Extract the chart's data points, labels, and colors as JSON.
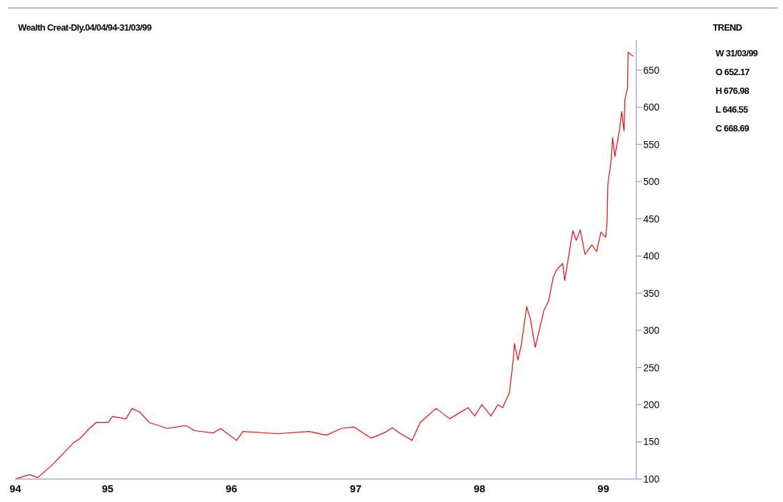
{
  "chart_data": {
    "type": "line",
    "title": "Wealth Creat-Dly.04/04/94-31/03/99",
    "annotations": [
      "TREND",
      "W 31/03/99",
      "O 652.17",
      "H 676.98",
      "L 646.55",
      "C 668.69"
    ],
    "x": [
      "1994-04-04",
      "1994-05-16",
      "1994-06-09",
      "1994-07-24",
      "1994-09-23",
      "1994-10-13",
      "1994-11-08",
      "1994-11-28",
      "1995-01-03",
      "1995-01-15",
      "1995-02-24",
      "1995-03-14",
      "1995-04-06",
      "1995-05-04",
      "1995-06-26",
      "1995-08-19",
      "1995-09-15",
      "1995-11-08",
      "1995-11-30",
      "1996-01-16",
      "1996-02-04",
      "1996-05-16",
      "1996-08-17",
      "1996-10-07",
      "1996-11-20",
      "1996-12-27",
      "1997-02-16",
      "1997-03-30",
      "1997-04-19",
      "1997-05-10",
      "1997-06-16",
      "1997-07-10",
      "1997-08-26",
      "1997-10-05",
      "1997-11-28",
      "1997-12-18",
      "1998-01-08",
      "1998-02-04",
      "1998-02-24",
      "1998-03-10",
      "1998-03-30",
      "1998-04-10",
      "1998-04-14",
      "1998-04-24",
      "1998-05-04",
      "1998-05-20",
      "1998-05-31",
      "1998-06-14",
      "1998-06-24",
      "1998-07-10",
      "1998-07-24",
      "1998-08-06",
      "1998-08-16",
      "1998-09-03",
      "1998-09-09",
      "1998-10-03",
      "1998-10-13",
      "1998-10-25",
      "1998-11-08",
      "1998-11-28",
      "1998-12-12",
      "1998-12-25",
      "1999-01-08",
      "1999-01-12",
      "1999-01-14",
      "1999-01-24",
      "1999-01-28",
      "1999-02-04",
      "1999-02-18",
      "1999-02-24",
      "1999-03-03",
      "1999-03-05",
      "1999-03-13",
      "1999-03-15",
      "1999-03-25",
      "1999-03-31"
    ],
    "series": [
      {
        "color": "#ff0000",
        "values": [
          100,
          106,
          102,
          120,
          149,
          155,
          168,
          176,
          176,
          184,
          181,
          195,
          190,
          176,
          168,
          172,
          165,
          162,
          168,
          152,
          164,
          161,
          164,
          159,
          168,
          170,
          155,
          163,
          169,
          162,
          152,
          176,
          195,
          181,
          196,
          185,
          200,
          185,
          200,
          196,
          216,
          259,
          282,
          260,
          280,
          332,
          315,
          277,
          296,
          327,
          340,
          371,
          381,
          390,
          367,
          434,
          421,
          435,
          402,
          415,
          406,
          432,
          425,
          446,
          496,
          528,
          559,
          534,
          571,
          594,
          568,
          609,
          626,
          674,
          670,
          669
        ]
      }
    ],
    "xlim": [
      "1994-04-04",
      "1999-04-08"
    ],
    "xticks": [
      {
        "value": "1994-04-04",
        "label": "94"
      },
      {
        "value": "1995-01-01",
        "label": "95"
      },
      {
        "value": "1996-01-01",
        "label": "96"
      },
      {
        "value": "1997-01-01",
        "label": "97"
      },
      {
        "value": "1998-01-01",
        "label": "98"
      },
      {
        "value": "1999-01-01",
        "label": "99"
      }
    ],
    "ylim": [
      100,
      690
    ],
    "yticks": [
      100,
      150,
      200,
      250,
      300,
      350,
      400,
      450,
      500,
      550,
      600,
      650
    ]
  }
}
